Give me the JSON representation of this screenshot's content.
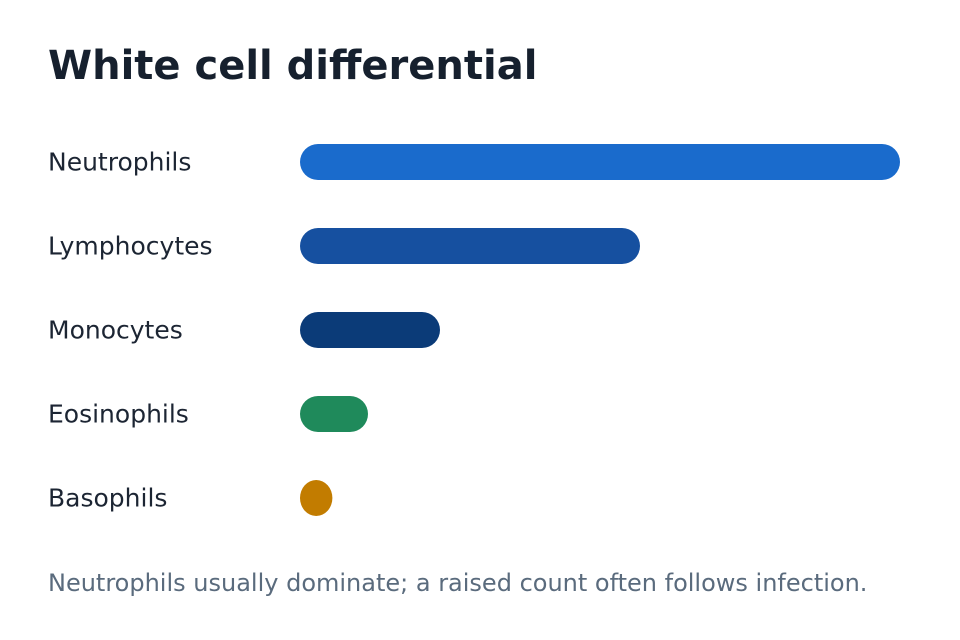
{
  "title": "White cell differential",
  "caption": "Neutrophils usually dominate; a raised count often follows infection.",
  "chart_data": {
    "type": "bar",
    "orientation": "horizontal",
    "title": "White cell differential",
    "categories": [
      "Neutrophils",
      "Lymphocytes",
      "Monocytes",
      "Eosinophils",
      "Basophils"
    ],
    "values": [
      60,
      34,
      14,
      6.8,
      3.2
    ],
    "colors": [
      "#1a6bcc",
      "#1650a0",
      "#0b3b78",
      "#1f8a5b",
      "#c27c00"
    ],
    "xlim": [
      0,
      60
    ],
    "grid": false,
    "legend": "none"
  }
}
